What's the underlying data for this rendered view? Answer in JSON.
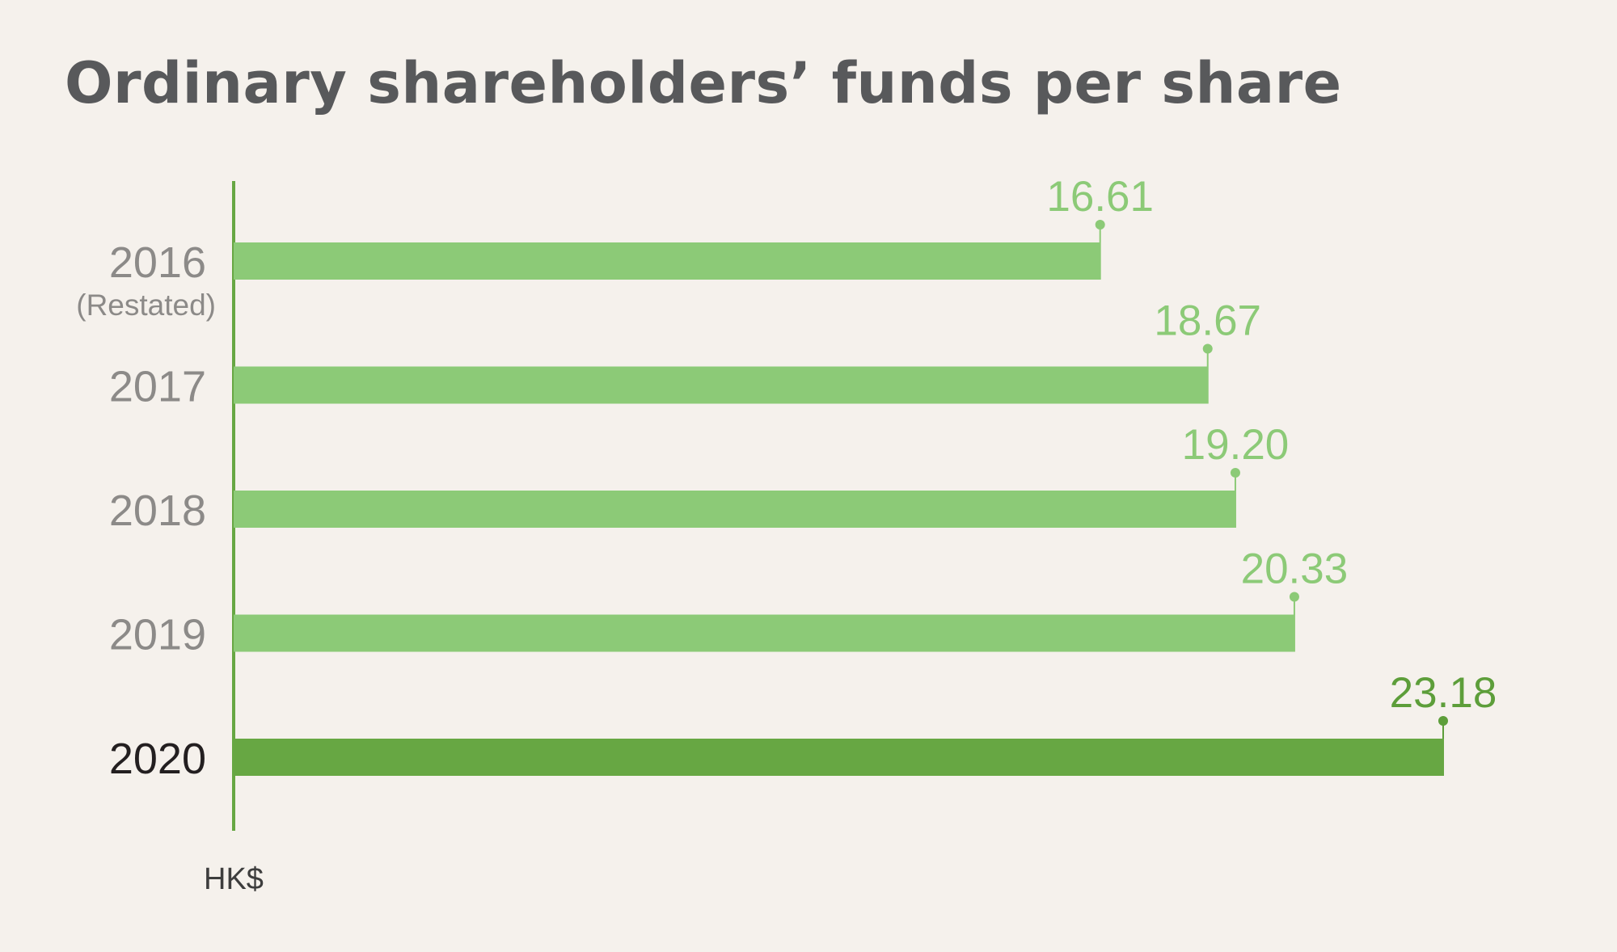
{
  "chart_data": {
    "type": "bar",
    "orientation": "horizontal",
    "title": "Ordinary shareholders’ funds per share",
    "unit_label": "HK$",
    "categories": [
      "2016",
      "2017",
      "2018",
      "2019",
      "2020"
    ],
    "category_notes": [
      "(Restated)",
      "",
      "",
      "",
      ""
    ],
    "values": [
      16.61,
      18.67,
      19.2,
      20.33,
      23.18
    ],
    "value_labels": [
      "16.61",
      "18.67",
      "19.20",
      "20.33",
      "23.18"
    ],
    "highlight_category": "2020",
    "xlim": [
      0,
      23.18
    ],
    "grid": false,
    "legend": "none"
  },
  "colors": {
    "background": "#f5f1ec",
    "title": "#58595b",
    "bar": "#8cca77",
    "bar_highlight": "#67a743",
    "axis": "#67a743",
    "category_label": "#8c8a88",
    "category_label_highlight": "#231f20",
    "value_label": "#8cca77",
    "value_label_highlight": "#5d9e3a",
    "unit_label": "#3d3d3d"
  }
}
